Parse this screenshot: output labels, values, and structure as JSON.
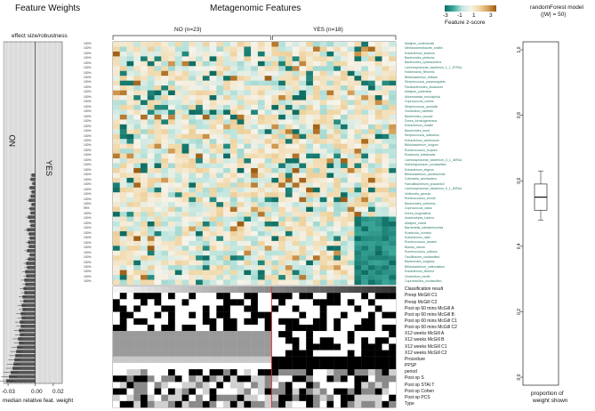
{
  "headers": {
    "feature_weights": "Feature Weights",
    "metagenomic": "Metagenomic Features",
    "rf_title_1": "randomForest model",
    "rf_title_2": "(|W| = 50)",
    "effect_size": "effect size/robustness"
  },
  "groups": {
    "no": "NO (n=23)",
    "yes": "YES (n=18)"
  },
  "legend": {
    "title": "Feature z-score",
    "ticks": [
      "-3",
      "-1",
      "1",
      "3"
    ]
  },
  "side_labels": {
    "no": "NO",
    "yes": "YES"
  },
  "chart_data": [
    {
      "type": "bar",
      "title": "Feature Weights",
      "xlabel": "median relative feat. weight",
      "xticks": [
        "-0.03",
        "0.00",
        "0.02"
      ],
      "xlim": [
        -0.035,
        0.03
      ],
      "features": [
        "Alistipes_onderdonkii",
        "Methanobrevibacter_smithii",
        "Eubacterium_siraeum",
        "Bacteroides_plebeius",
        "Bacteroides_xylanisolvens",
        "Lachnospiraceae_bacterium_1_1_57FAA",
        "Holdemania_filiformis",
        "Bifidobacterium_bifidum",
        "Streptococcus_parasanguinis",
        "Parabacteroides_distasonis",
        "Alistipes_putredinis",
        "Akkermansia_muciniphila",
        "Coprococcus_comes",
        "Streptococcus_australis",
        "Clostridium_bartlettii",
        "Bacteroides_caccae",
        "Dorea_formicigenerans",
        "Eubacterium_rectale",
        "Bacteroides_dorei",
        "Streptococcus_salivarius",
        "Eubacterium_ventriosum",
        "Bifidobacterium_longum",
        "Ruminococcus_torques",
        "Roseburia_intestinalis",
        "Lachnospiraceae_bacterium_3_1_46FAA",
        "Subdoligranulum_unclassified",
        "Eubacterium_eligens",
        "Bifidobacterium_adolescentis",
        "Collinsella_aerofaciens",
        "Faecalibacterium_prausnitzii",
        "Lachnospiraceae_bacterium_5_1_63FAA",
        "Veillonella_parvula",
        "Ruminococcus_bromii",
        "Bacteroides_uniformis",
        "Coprococcus_catus",
        "Dorea_longicatena",
        "Anaerostipes_hadrus",
        "Alistipes_shahii",
        "Barnesiella_intestinihominis",
        "Roseburia_hominis",
        "Eubacterium_hallii",
        "Ruminococcus_lactaris",
        "Blautia_obeum",
        "Ruminococcus_callidus",
        "Oscillibacter_unclassified",
        "Bacteroides_vulgatus",
        "Bifidobacterium_catenulatum",
        "Eubacterium_biforme",
        "Clostridium_nexile",
        "Coprobacillus_unclassified"
      ],
      "weights": [
        -0.004,
        -0.005,
        -0.003,
        -0.006,
        -0.004,
        -0.005,
        -0.007,
        -0.004,
        -0.006,
        -0.005,
        -0.008,
        -0.006,
        -0.005,
        -0.009,
        -0.007,
        -0.006,
        -0.008,
        -0.007,
        -0.009,
        -0.006,
        -0.008,
        -0.01,
        -0.009,
        -0.011,
        -0.01,
        -0.012,
        -0.011,
        -0.013,
        -0.012,
        -0.014,
        -0.013,
        -0.015,
        -0.014,
        -0.016,
        -0.015,
        -0.017,
        -0.016,
        -0.018,
        -0.017,
        -0.019,
        -0.018,
        -0.02,
        -0.021,
        -0.022,
        -0.023,
        -0.024,
        -0.025,
        -0.027,
        -0.029,
        -0.032
      ],
      "robustness": [
        "100%",
        "100%",
        "100%",
        "100%",
        "100%",
        "100%",
        "100%",
        "100%",
        "100%",
        "100%",
        "100%",
        "100%",
        "100%",
        "100%",
        "100%",
        "100%",
        "100%",
        "100%",
        "100%",
        "100%",
        "100%",
        "100%",
        "100%",
        "100%",
        "100%",
        "100%",
        "100%",
        "100%",
        "100%",
        "100%",
        "100%",
        "100%",
        "100%",
        "100%",
        "99%",
        "100%",
        "100%",
        "100%",
        "100%",
        "100%",
        "100%",
        "100%",
        "100%",
        "100%",
        "100%",
        "100%",
        "100%",
        "100%",
        "100%",
        "100%"
      ]
    },
    {
      "type": "heatmap",
      "title": "Metagenomic Features",
      "n_samples": 41,
      "n_features": 50,
      "group_split": 23,
      "zlim": [
        -3,
        3
      ],
      "metadata_rows": [
        "Classification result",
        "Preop McGill C1",
        "Preop McGill C2",
        "Post op 60 mins  McGill  A",
        "Post op 60 mins  McGill  B",
        "Post op 60 mins  McGill  C1",
        "Post op 60 mins  McGill  C2",
        "X12 weeks McGill A",
        "X12 weeks McGill B",
        "X12 weeks McGill C1",
        "X12 weeks McGill C2",
        "Procedure",
        "PPSP",
        "period",
        "Post op S",
        "Post op STAI T",
        "Post op Cohen",
        "Post op PCS",
        "Type"
      ]
    },
    {
      "type": "box",
      "title": "randomForest model (|W| = 50)",
      "ylabel": "proportion of weight shown",
      "yticks": [
        "0.0",
        "0.2",
        "0.4",
        "0.6",
        "0.8",
        "1.0"
      ],
      "ylim": [
        0,
        1
      ],
      "box": {
        "min": 0.48,
        "q1": 0.51,
        "median": 0.55,
        "q3": 0.59,
        "max": 0.63
      }
    }
  ]
}
